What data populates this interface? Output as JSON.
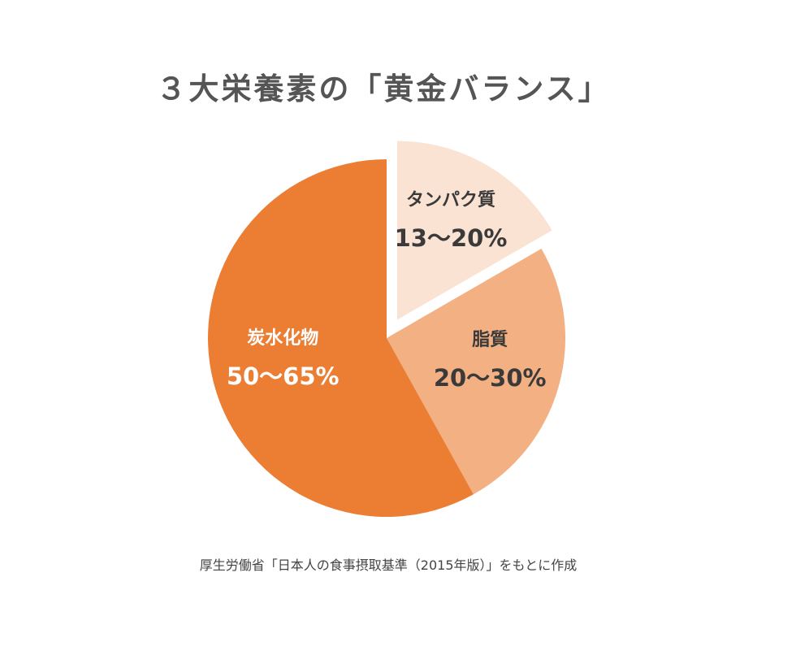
{
  "chart_data": {
    "type": "pie",
    "title": "３大栄養素の「黄金バランス」",
    "slices": [
      {
        "name": "タンパク質",
        "range_label": "13〜20%",
        "range_percent": [
          13,
          20
        ],
        "value": 16.5,
        "color": "#FAE3D3",
        "label_color": "#3a3a3a",
        "exploded": true
      },
      {
        "name": "脂質",
        "range_label": "20〜30%",
        "range_percent": [
          20,
          30
        ],
        "value": 25,
        "color": "#F3B083",
        "label_color": "#3a3a3a",
        "exploded": false
      },
      {
        "name": "炭水化物",
        "range_label": "50〜65%",
        "range_percent": [
          50,
          65
        ],
        "value": 57.5,
        "color": "#EB7E33",
        "label_color": "#ffffff",
        "exploded": false
      }
    ],
    "source_note": "厚生労働省「日本人の食事摂取基準（2015年版）」をもとに作成"
  }
}
